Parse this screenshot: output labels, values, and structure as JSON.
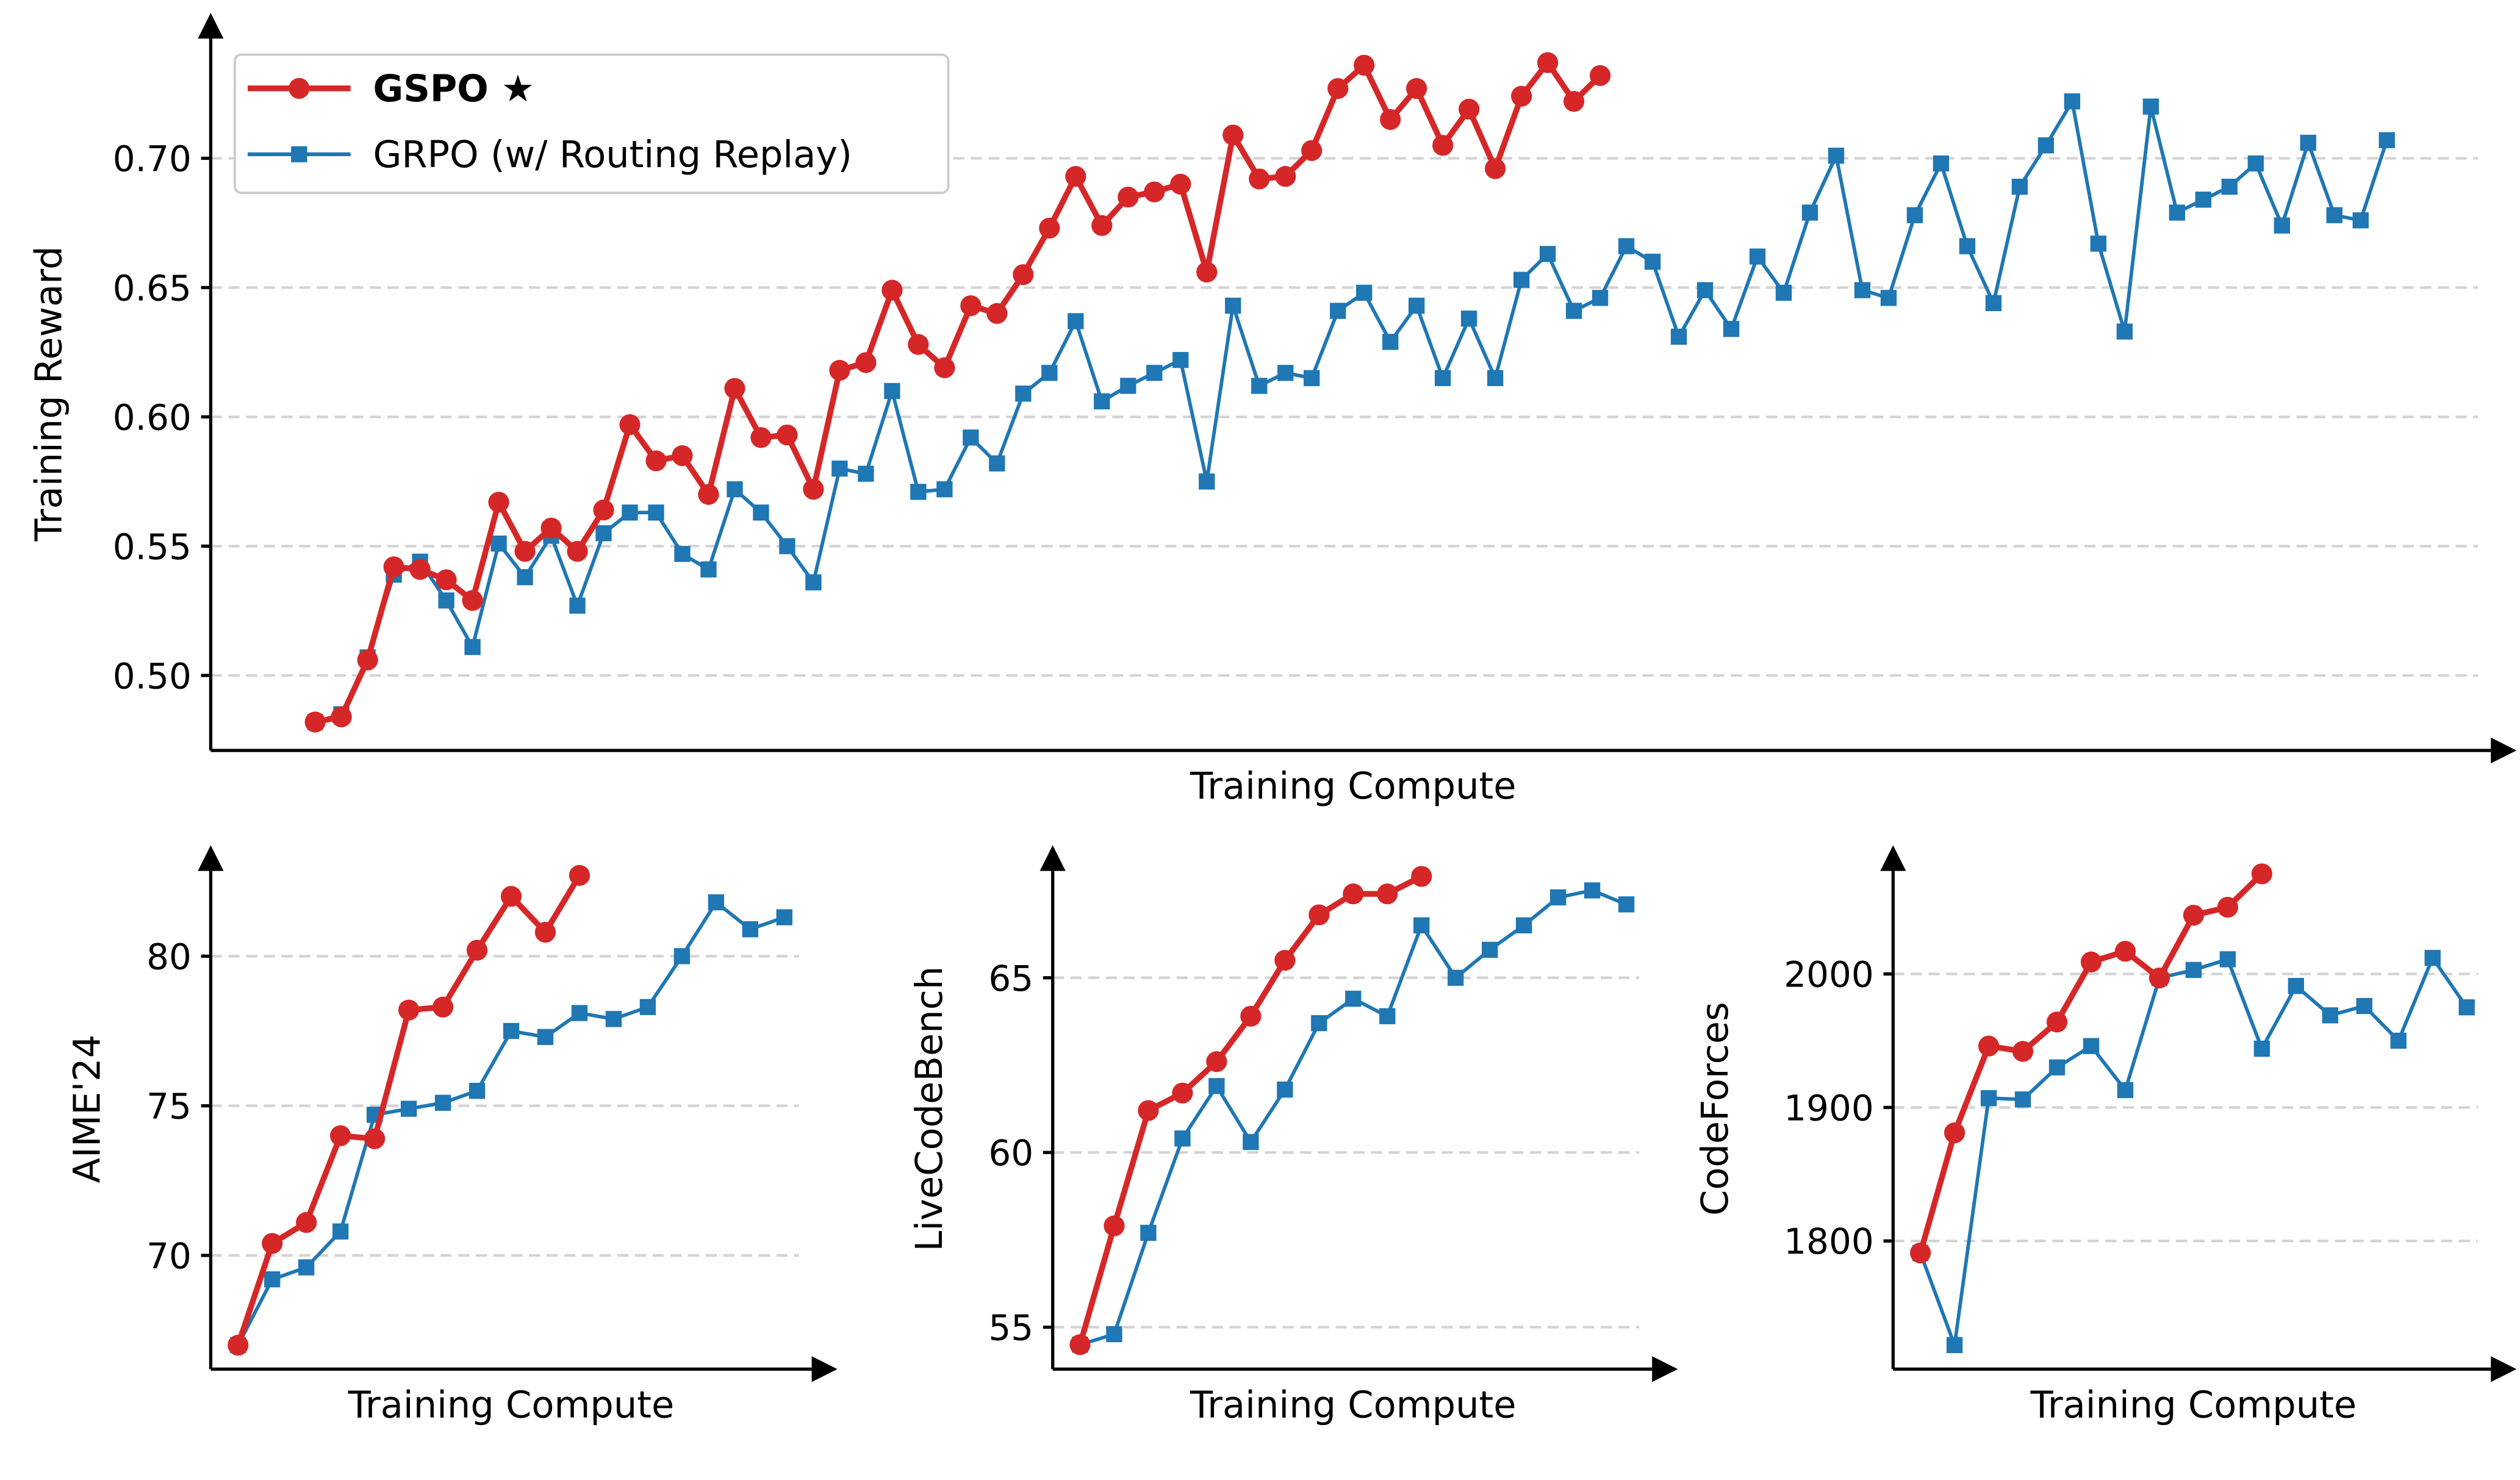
{
  "colors": {
    "gspo": "#d62728",
    "grpo": "#1f77b4",
    "grid": "#d3d3d3"
  },
  "legend": {
    "placement": "top-left",
    "items": [
      {
        "label": "GSPO ★",
        "marker": "circle",
        "bold": true
      },
      {
        "label": "GRPO (w/ Routing Replay)",
        "marker": "square",
        "bold": false
      }
    ]
  },
  "chart_data": [
    {
      "type": "line",
      "xlabel": "Training Compute",
      "ylabel": "Training Reward",
      "ylim": [
        0.471,
        0.755
      ],
      "yticks": [
        0.5,
        0.55,
        0.6,
        0.65,
        0.7
      ],
      "ytick_labels": [
        "0.50",
        "0.55",
        "0.60",
        "0.65",
        "0.70"
      ],
      "grid": "y-dashed",
      "series": [
        {
          "name": "GSPO ★",
          "values": [
            0.482,
            0.484,
            0.506,
            0.542,
            0.541,
            0.537,
            0.529,
            0.567,
            0.548,
            0.557,
            0.548,
            0.564,
            0.597,
            0.583,
            0.585,
            0.57,
            0.611,
            0.592,
            0.593,
            0.572,
            0.618,
            0.621,
            0.649,
            0.628,
            0.619,
            0.643,
            0.64,
            0.655,
            0.673,
            0.693,
            0.674,
            0.685,
            0.687,
            0.69,
            0.656,
            0.709,
            0.692,
            0.693,
            0.703,
            0.727,
            0.736,
            0.715,
            0.727,
            0.705,
            0.719,
            0.696,
            0.724,
            0.737,
            0.722,
            0.732
          ]
        },
        {
          "name": "GRPO (w/ Routing Replay)",
          "values": [
            0.482,
            0.485,
            0.507,
            0.539,
            0.544,
            0.529,
            0.511,
            0.551,
            0.538,
            0.554,
            0.527,
            0.555,
            0.563,
            0.563,
            0.547,
            0.541,
            0.572,
            0.563,
            0.55,
            0.536,
            0.58,
            0.578,
            0.61,
            0.571,
            0.572,
            0.592,
            0.582,
            0.609,
            0.617,
            0.637,
            0.606,
            0.612,
            0.617,
            0.622,
            0.575,
            0.643,
            0.612,
            0.617,
            0.615,
            0.641,
            0.648,
            0.629,
            0.643,
            0.615,
            0.638,
            0.615,
            0.653,
            0.663,
            0.641,
            0.646,
            0.666,
            0.66,
            0.631,
            0.649,
            0.634,
            0.662,
            0.648,
            0.679,
            0.701,
            0.649,
            0.646,
            0.678,
            0.698,
            0.666,
            0.644,
            0.689,
            0.705,
            0.722,
            0.667,
            0.633,
            0.72,
            0.679,
            0.684,
            0.689,
            0.698,
            0.674,
            0.706,
            0.678,
            0.676,
            0.707
          ]
        }
      ]
    },
    {
      "type": "line",
      "xlabel": "Training Compute",
      "ylabel": "AIME'24",
      "ylim": [
        66.2,
        83.6
      ],
      "yticks": [
        70,
        75,
        80
      ],
      "ytick_labels": [
        "70",
        "75",
        "80"
      ],
      "grid": "y-dashed",
      "series": [
        {
          "name": "GSPO ★",
          "values": [
            67.0,
            70.4,
            71.1,
            74.0,
            73.9,
            78.2,
            78.3,
            80.2,
            82.0,
            80.8,
            82.7
          ]
        },
        {
          "name": "GRPO (w/ Routing Replay)",
          "values": [
            67.0,
            69.2,
            69.6,
            70.8,
            74.7,
            74.9,
            75.1,
            75.5,
            77.5,
            77.3,
            78.1,
            77.9,
            78.3,
            80.0,
            81.8,
            80.9,
            81.3
          ]
        }
      ]
    },
    {
      "type": "line",
      "xlabel": "Training Compute",
      "ylabel": "LiveCodeBench",
      "ylim": [
        53.8,
        68.7
      ],
      "yticks": [
        55,
        60,
        65
      ],
      "ytick_labels": [
        "55",
        "60",
        "65"
      ],
      "grid": "y-dashed",
      "series": [
        {
          "name": "GSPO ★",
          "values": [
            54.5,
            57.9,
            61.2,
            61.7,
            62.6,
            63.9,
            65.5,
            66.8,
            67.4,
            67.4,
            67.9
          ]
        },
        {
          "name": "GRPO (w/ Routing Replay)",
          "values": [
            54.5,
            54.8,
            57.7,
            60.4,
            61.9,
            60.3,
            61.8,
            63.7,
            64.4,
            63.9,
            66.5,
            65.0,
            65.8,
            66.5,
            67.3,
            67.5,
            67.1
          ]
        }
      ]
    },
    {
      "type": "line",
      "xlabel": "Training Compute",
      "ylabel": "CodeForces",
      "ylim": [
        1704,
        2094
      ],
      "yticks": [
        1800,
        1900,
        2000
      ],
      "ytick_labels": [
        "1800",
        "1900",
        "2000"
      ],
      "grid": "y-dashed",
      "series": [
        {
          "name": "GSPO ★",
          "values": [
            1791,
            1881,
            1946,
            1942,
            1964,
            2009,
            2017,
            1997,
            2044,
            2050,
            2075
          ]
        },
        {
          "name": "GRPO (w/ Routing Replay)",
          "values": [
            1791,
            1722,
            1907,
            1906,
            1930,
            1946,
            1913,
            1997,
            2003,
            2011,
            1944,
            1991,
            1969,
            1976,
            1950,
            2012,
            1975
          ]
        }
      ]
    }
  ]
}
